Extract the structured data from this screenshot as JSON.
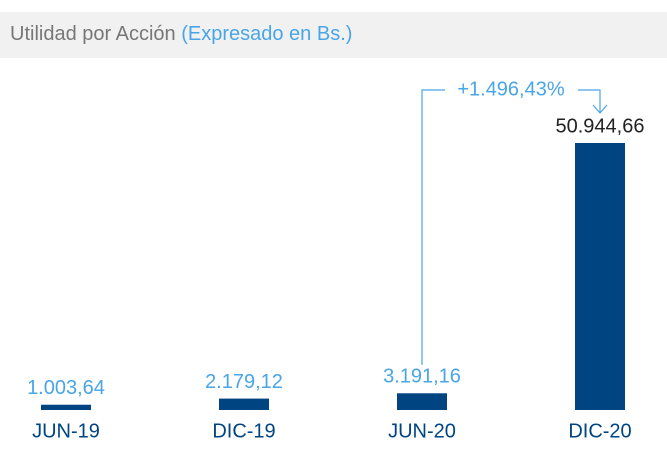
{
  "chart_data": {
    "type": "bar",
    "title": "Utilidad por Acción",
    "subtitle": "(Expresado en Bs.)",
    "categories": [
      "JUN-19",
      "DIC-19",
      "JUN-20",
      "DIC-20"
    ],
    "values": [
      1003.64,
      2179.12,
      3191.16,
      50944.66
    ],
    "value_labels": [
      "1.003,64",
      "2.179,12",
      "3.191,16",
      "50.944,66"
    ],
    "color": "#004481",
    "annotation": "+1.496,43%"
  }
}
